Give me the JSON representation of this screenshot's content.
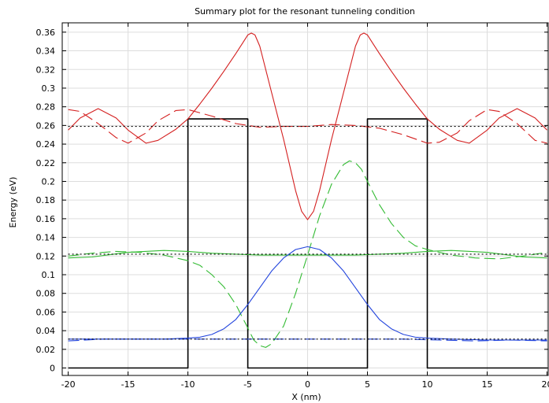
{
  "chart_data": {
    "type": "line",
    "title": "Summary plot for the resonant tunneling condition",
    "xlabel": "X (nm)",
    "ylabel": "Energy (eV)",
    "xlim": [
      -20.5,
      20.1
    ],
    "ylim": [
      -0.008,
      0.37
    ],
    "xticks": [
      -20,
      -15,
      -10,
      -5,
      0,
      5,
      10,
      15,
      20
    ],
    "xtick_labels": [
      "-20",
      "-15",
      "-10",
      "-5",
      "0",
      "5",
      "10",
      "15",
      "20"
    ],
    "yticks": [
      0,
      0.02,
      0.04,
      0.06,
      0.08,
      0.1,
      0.12,
      0.14,
      0.16,
      0.18,
      0.2,
      0.22,
      0.24,
      0.26,
      0.28,
      0.3,
      0.32,
      0.34,
      0.36
    ],
    "ytick_labels": [
      "0",
      "0.02",
      "0.04",
      "0.06",
      "0.08",
      "0.1",
      "0.12",
      "0.14",
      "0.16",
      "0.18",
      "0.2",
      "0.22",
      "0.24",
      "0.26",
      "0.28",
      "0.3",
      "0.32",
      "0.34",
      "0.36"
    ],
    "grid": true,
    "legend": "none",
    "colors": {
      "potential": "#000000",
      "state3": "#d42020",
      "state2": "#33bb33",
      "state1": "#2244dd",
      "grid": "#dddddd"
    },
    "series": [
      {
        "key": "potential",
        "style": "solid",
        "x": [
          -20,
          -10,
          -10,
          -5,
          -5,
          5,
          5,
          10,
          10,
          20
        ],
        "y": [
          0,
          0,
          0.267,
          0.267,
          0,
          0,
          0.267,
          0.267,
          0,
          0
        ]
      },
      {
        "key": "state3",
        "style": "solid",
        "x": [
          -20,
          -19,
          -17.5,
          -16,
          -15,
          -13.5,
          -12.5,
          -11,
          -10,
          -9,
          -8,
          -7,
          -6,
          -5.5,
          -5,
          -4.7,
          -4.4,
          -4,
          -3,
          -2,
          -1,
          -0.5,
          0,
          0.5,
          1,
          2,
          3,
          4,
          4.4,
          4.7,
          5,
          5.5,
          6,
          7,
          8,
          9,
          10,
          11,
          12.5,
          13.5,
          15,
          16,
          17.5,
          19,
          20
        ],
        "y": [
          0.255,
          0.268,
          0.278,
          0.268,
          0.255,
          0.241,
          0.244,
          0.256,
          0.267,
          0.283,
          0.3,
          0.318,
          0.337,
          0.347,
          0.357,
          0.359,
          0.357,
          0.345,
          0.295,
          0.245,
          0.19,
          0.168,
          0.159,
          0.168,
          0.19,
          0.245,
          0.295,
          0.345,
          0.357,
          0.359,
          0.357,
          0.347,
          0.337,
          0.318,
          0.3,
          0.283,
          0.267,
          0.256,
          0.244,
          0.241,
          0.255,
          0.268,
          0.278,
          0.268,
          0.255
        ]
      },
      {
        "key": "state3_dashed",
        "style": "dashed",
        "x": [
          -20,
          -19,
          -17.5,
          -16,
          -15,
          -13.5,
          -12.5,
          -11,
          -10,
          -8,
          -6,
          -4,
          -2,
          0,
          2,
          4,
          6,
          8,
          10,
          11,
          12.5,
          13.5,
          15,
          16,
          17.5,
          19,
          20
        ],
        "y": [
          0.277,
          0.275,
          0.262,
          0.247,
          0.241,
          0.252,
          0.265,
          0.276,
          0.277,
          0.27,
          0.262,
          0.258,
          0.259,
          0.259,
          0.261,
          0.26,
          0.257,
          0.25,
          0.241,
          0.242,
          0.252,
          0.265,
          0.277,
          0.275,
          0.262,
          0.244,
          0.241
        ]
      },
      {
        "key": "state3_level",
        "style": "dotted",
        "x": [
          -20,
          20
        ],
        "y": [
          0.259,
          0.259
        ]
      },
      {
        "key": "state2",
        "style": "solid",
        "x": [
          -20,
          -18,
          -15,
          -12,
          -10,
          -8,
          -6,
          -4,
          -2,
          0,
          2,
          4,
          6,
          8,
          10,
          12,
          15,
          18,
          20
        ],
        "y": [
          0.118,
          0.119,
          0.124,
          0.126,
          0.125,
          0.123,
          0.122,
          0.121,
          0.121,
          0.121,
          0.121,
          0.121,
          0.122,
          0.123,
          0.125,
          0.126,
          0.124,
          0.119,
          0.118
        ]
      },
      {
        "key": "state2_dashed",
        "style": "dashed",
        "x": [
          -20,
          -18,
          -16,
          -14,
          -12,
          -10,
          -9,
          -8,
          -7,
          -6,
          -5,
          -4.5,
          -4,
          -3.5,
          -3,
          -2,
          -1,
          0,
          1,
          2,
          3,
          3.5,
          4,
          4.5,
          5,
          6,
          7,
          8,
          9,
          10,
          12,
          14,
          16,
          18,
          20
        ],
        "y": [
          0.12,
          0.123,
          0.125,
          0.124,
          0.121,
          0.115,
          0.11,
          0.1,
          0.087,
          0.068,
          0.043,
          0.03,
          0.024,
          0.022,
          0.026,
          0.045,
          0.08,
          0.121,
          0.163,
          0.197,
          0.218,
          0.222,
          0.22,
          0.213,
          0.2,
          0.175,
          0.155,
          0.14,
          0.131,
          0.127,
          0.121,
          0.118,
          0.117,
          0.12,
          0.124
        ]
      },
      {
        "key": "state2_level",
        "style": "dotted",
        "x": [
          -20,
          20
        ],
        "y": [
          0.122,
          0.122
        ]
      },
      {
        "key": "state1",
        "style": "solid",
        "x": [
          -20,
          -15,
          -12,
          -10,
          -9,
          -8,
          -7,
          -6,
          -5,
          -4,
          -3,
          -2,
          -1,
          0,
          1,
          2,
          3,
          4,
          5,
          6,
          7,
          8,
          9,
          10,
          12,
          15,
          20
        ],
        "y": [
          0.031,
          0.031,
          0.031,
          0.032,
          0.033,
          0.036,
          0.042,
          0.052,
          0.068,
          0.086,
          0.104,
          0.118,
          0.127,
          0.13,
          0.127,
          0.118,
          0.104,
          0.086,
          0.068,
          0.052,
          0.042,
          0.036,
          0.033,
          0.032,
          0.031,
          0.03,
          0.03
        ]
      },
      {
        "key": "state1_dashed",
        "style": "dashed",
        "x": [
          -20,
          -17,
          -14,
          -11,
          -8,
          -5,
          0,
          5,
          8,
          11,
          14,
          17,
          20
        ],
        "y": [
          0.029,
          0.031,
          0.031,
          0.031,
          0.031,
          0.031,
          0.031,
          0.031,
          0.031,
          0.03,
          0.029,
          0.03,
          0.029
        ]
      },
      {
        "key": "state1_level",
        "style": "dotted",
        "x": [
          -20,
          20
        ],
        "y": [
          0.031,
          0.031
        ]
      }
    ]
  }
}
